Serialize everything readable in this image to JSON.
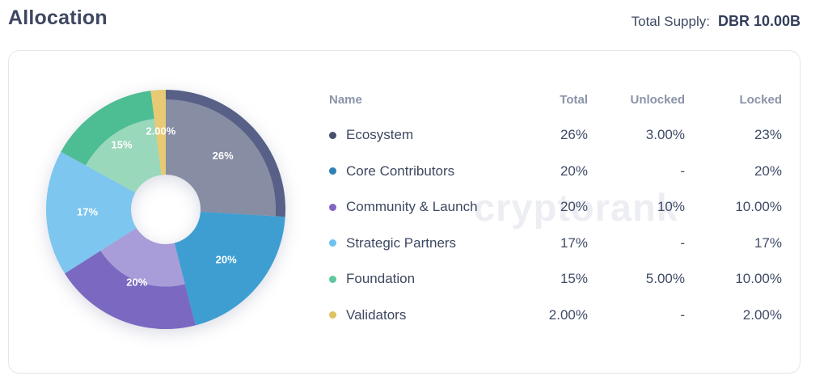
{
  "header": {
    "title": "Allocation",
    "total_supply_label": "Total Supply:",
    "total_supply_value": "DBR 10.00B"
  },
  "watermark": "cryptorank",
  "table": {
    "columns": [
      "Name",
      "Total",
      "Unlocked",
      "Locked"
    ],
    "rows": [
      {
        "name": "Ecosystem",
        "total": "26%",
        "unlocked": "3.00%",
        "locked": "23%",
        "dot_color": "#474f6b"
      },
      {
        "name": "Core Contributors",
        "total": "20%",
        "unlocked": "-",
        "locked": "20%",
        "dot_color": "#2f80b6"
      },
      {
        "name": "Community & Launch",
        "total": "20%",
        "unlocked": "10%",
        "locked": "10.00%",
        "dot_color": "#7f66c3"
      },
      {
        "name": "Strategic Partners",
        "total": "17%",
        "unlocked": "-",
        "locked": "17%",
        "dot_color": "#6fc1ee"
      },
      {
        "name": "Foundation",
        "total": "15%",
        "unlocked": "5.00%",
        "locked": "10.00%",
        "dot_color": "#5ec89d"
      },
      {
        "name": "Validators",
        "total": "2.00%",
        "unlocked": "-",
        "locked": "2.00%",
        "dot_color": "#dfc161"
      }
    ]
  },
  "chart_data": {
    "type": "pie",
    "variant": "donut",
    "title": "",
    "direction": "clockwise",
    "start_angle_deg": 0,
    "outer_radius": 148,
    "inner_radius": 43,
    "label_radius": 97,
    "legend_position": "right-table",
    "segments": [
      {
        "label": "Ecosystem",
        "value_pct": 26,
        "unlocked_pct": 3,
        "locked_pct": 23,
        "slice_label": "26%",
        "color": "#586087",
        "locked_shade": "#878da3"
      },
      {
        "label": "Core Contributors",
        "value_pct": 20,
        "unlocked_pct": 0,
        "locked_pct": 20,
        "slice_label": "20%",
        "color": "#3e9ed1",
        "locked_shade": null
      },
      {
        "label": "Community & Launch",
        "value_pct": 20,
        "unlocked_pct": 10,
        "locked_pct": 10,
        "slice_label": "20%",
        "color": "#7b68c0",
        "locked_shade": "#a89dd8"
      },
      {
        "label": "Strategic Partners",
        "value_pct": 17,
        "unlocked_pct": 0,
        "locked_pct": 17,
        "slice_label": "17%",
        "color": "#7cc6f0",
        "locked_shade": null
      },
      {
        "label": "Foundation",
        "value_pct": 15,
        "unlocked_pct": 5,
        "locked_pct": 10,
        "slice_label": "15%",
        "color": "#4dbd94",
        "locked_shade": "#99d8bb"
      },
      {
        "label": "Validators",
        "value_pct": 2,
        "unlocked_pct": 0,
        "locked_pct": 2,
        "slice_label": "2.00%",
        "color": "#e7ca73",
        "locked_shade": null
      }
    ]
  }
}
